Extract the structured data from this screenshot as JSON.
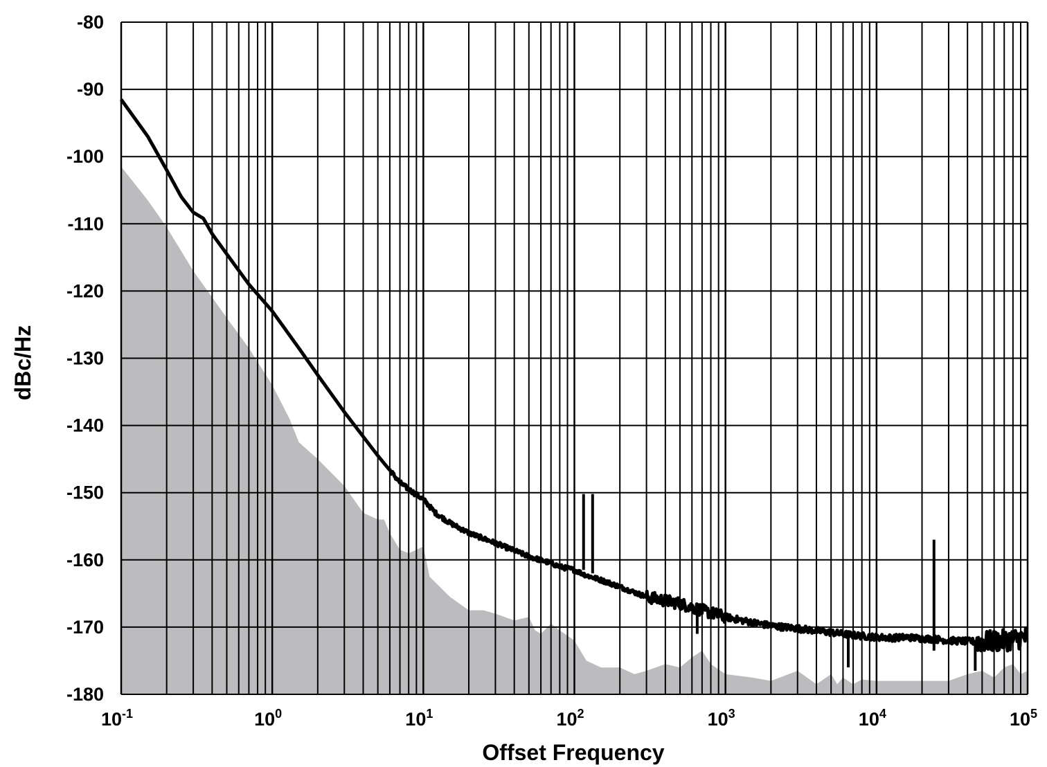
{
  "chart_data": {
    "type": "line",
    "title": "",
    "xlabel": "Offset Frequency",
    "ylabel": "dBc/Hz",
    "x_scale": "log",
    "xlim": [
      0.1,
      100000
    ],
    "ylim": [
      -180,
      -80
    ],
    "x_ticks": [
      {
        "value": 0.1,
        "base": "10",
        "exp": "-1"
      },
      {
        "value": 1,
        "base": "10",
        "exp": "0"
      },
      {
        "value": 10,
        "base": "10",
        "exp": "1"
      },
      {
        "value": 100,
        "base": "10",
        "exp": "2"
      },
      {
        "value": 1000,
        "base": "10",
        "exp": "3"
      },
      {
        "value": 10000,
        "base": "10",
        "exp": "4"
      },
      {
        "value": 100000,
        "base": "10",
        "exp": "5"
      }
    ],
    "y_ticks": [
      "-80",
      "-90",
      "-100",
      "-110",
      "-120",
      "-130",
      "-140",
      "-150",
      "-160",
      "-170",
      "-180"
    ],
    "grid": true,
    "legend": "none",
    "colors": {
      "line": "#000000",
      "fill": "#bcbcbe",
      "grid": "#000000"
    },
    "series": [
      {
        "style": "line",
        "color": "#000000",
        "x": [
          0.1,
          0.15,
          0.2,
          0.25,
          0.3,
          0.35,
          0.4,
          0.5,
          0.7,
          1,
          1.5,
          2,
          3,
          5,
          7,
          8,
          10,
          12,
          15,
          20,
          30,
          50,
          70,
          80,
          100,
          120,
          150,
          200,
          300,
          500,
          700,
          1000,
          1500,
          2000,
          3000,
          5000,
          7000,
          10000,
          13000,
          16000,
          20000,
          25000,
          30000,
          50000,
          70000,
          100000
        ],
        "y": [
          -91.5,
          -97,
          -102,
          -106,
          -108.3,
          -109.2,
          -111.5,
          -114.5,
          -119,
          -123,
          -128.5,
          -132.5,
          -138,
          -144.5,
          -148.5,
          -149.5,
          -151,
          -153,
          -154.5,
          -156,
          -157.5,
          -159.5,
          -160.5,
          -161,
          -161.5,
          -162.3,
          -163,
          -164,
          -165.5,
          -166.5,
          -167.5,
          -168.5,
          -169.3,
          -169.8,
          -170.2,
          -170.8,
          -171.2,
          -171.5,
          -171.6,
          -171.5,
          -171.7,
          -171.8,
          -172,
          -172.2,
          -172,
          -171.5
        ]
      },
      {
        "style": "area",
        "color": "#bcbcbe",
        "x": [
          0.1,
          0.15,
          0.2,
          0.3,
          0.5,
          0.7,
          1,
          1.3,
          1.5,
          2,
          3,
          4,
          5,
          5.5,
          6,
          7,
          8,
          9,
          10,
          11,
          15,
          20,
          25,
          30,
          40,
          50,
          55,
          60,
          70,
          80,
          100,
          120,
          150,
          200,
          250,
          300,
          400,
          500,
          600,
          700,
          800,
          1000,
          1500,
          2000,
          3000,
          4000,
          5000,
          5500,
          6000,
          7000,
          8000,
          10000,
          20000,
          30000,
          40000,
          50000,
          60000,
          70000,
          80000,
          90000,
          100000
        ],
        "y": [
          -101.5,
          -106.5,
          -110.5,
          -117,
          -124,
          -128.5,
          -134,
          -139,
          -142.5,
          -145,
          -149,
          -153,
          -154,
          -154,
          -156,
          -158.5,
          -159,
          -158.5,
          -158,
          -162.5,
          -165.5,
          -167.5,
          -167.5,
          -168,
          -169,
          -168.5,
          -170.5,
          -171,
          -169.5,
          -170.5,
          -172,
          -175,
          -176,
          -176,
          -177,
          -176.5,
          -175.5,
          -176,
          -174.5,
          -173.5,
          -175.5,
          -177,
          -177.5,
          -178,
          -176.5,
          -178.5,
          -177,
          -178.5,
          -177.5,
          -178.5,
          -177.8,
          -178,
          -178,
          -178,
          -177,
          -176.5,
          -177.5,
          -176,
          -175.5,
          -177,
          -176.5
        ]
      }
    ],
    "spikes": [
      {
        "x": 115,
        "from": -161.5,
        "to": -150.2
      },
      {
        "x": 132,
        "from": -162.0,
        "to": -150.2
      },
      {
        "x": 24000,
        "from": -173.5,
        "to": -157.0
      },
      {
        "x": 6500,
        "from": -171.0,
        "to": -176.0
      },
      {
        "x": 45000,
        "from": -172.0,
        "to": -176.5
      },
      {
        "x": 650,
        "from": -168.0,
        "to": -171.0
      }
    ]
  }
}
